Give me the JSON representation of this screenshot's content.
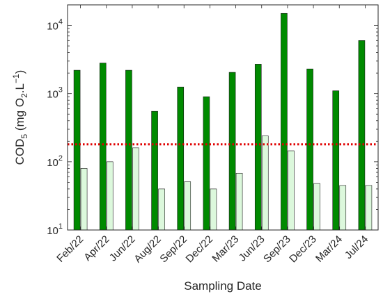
{
  "chart_data": {
    "type": "bar",
    "y_scale": "log",
    "ylim": [
      10,
      20000
    ],
    "y_ticks": [
      10,
      100,
      1000,
      10000
    ],
    "y_tick_labels": [
      {
        "base": "10",
        "exp": "1"
      },
      {
        "base": "10",
        "exp": "2"
      },
      {
        "base": "10",
        "exp": "3"
      },
      {
        "base": "10",
        "exp": "4"
      }
    ],
    "categories": [
      "Feb/22",
      "Apr/22",
      "Jun/22",
      "Aug/22",
      "Sep/22",
      "Dec/22",
      "Mar/23",
      "Jun/23",
      "Sep/23",
      "Dec/23",
      "Mar/24",
      "Jul/24"
    ],
    "series": [
      {
        "values": [
          2200,
          2800,
          2200,
          550,
          1250,
          900,
          2050,
          2700,
          15000,
          2300,
          1100,
          6000
        ],
        "fill": "#008a00"
      },
      {
        "values": [
          80,
          100,
          160,
          40,
          51,
          40,
          68,
          240,
          145,
          48,
          45,
          45
        ],
        "fill": "#dcf8dc"
      }
    ],
    "reference_line": {
      "value": 180,
      "color": "#e00000",
      "style": "dotted"
    },
    "xlabel": "Sampling Date",
    "ylabel": {
      "main": "COD",
      "sub": "5",
      "unit_open": " (mg O",
      "unit_sub": "2",
      "unit_mid": ".L",
      "unit_sup": "−1",
      "unit_close": ")"
    },
    "grid": false,
    "legend": "none"
  }
}
